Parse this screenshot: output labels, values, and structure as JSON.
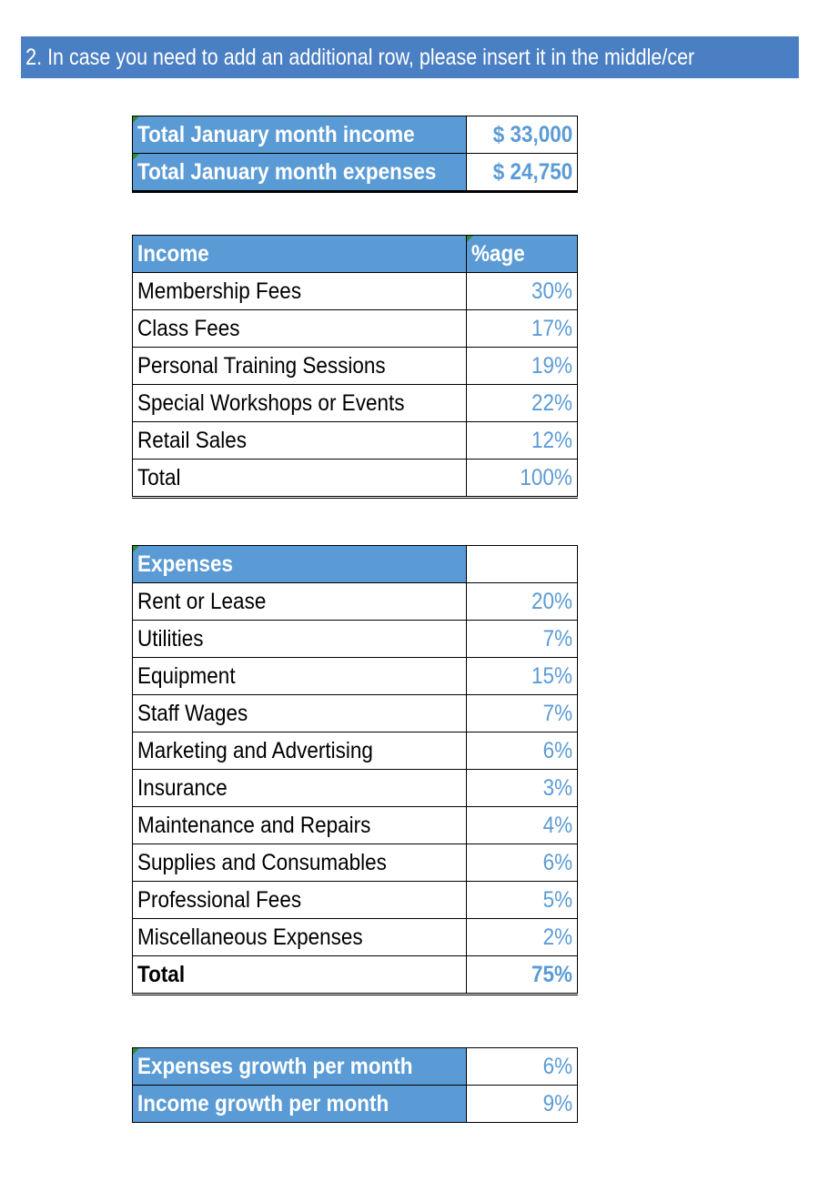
{
  "banner": {
    "text": "2. In case you need to add an additional row, please insert it in the middle/cer"
  },
  "summary": {
    "rows": [
      {
        "label": "Total January month income",
        "value": "$ 33,000"
      },
      {
        "label": "Total January month expenses",
        "value": "$ 24,750"
      }
    ]
  },
  "income": {
    "header_label": "Income",
    "header_value": "%age",
    "rows": [
      {
        "label": "Membership Fees",
        "value": "30%"
      },
      {
        "label": "Class Fees",
        "value": "17%"
      },
      {
        "label": "Personal Training Sessions",
        "value": "19%"
      },
      {
        "label": "Special Workshops or Events",
        "value": "22%"
      },
      {
        "label": "Retail Sales",
        "value": "12%"
      }
    ],
    "total_label": "Total",
    "total_value": "100%"
  },
  "expenses": {
    "header_label": "Expenses",
    "header_value": "",
    "rows": [
      {
        "label": "Rent or Lease",
        "value": "20%"
      },
      {
        "label": "Utilities",
        "value": "7%"
      },
      {
        "label": "Equipment",
        "value": "15%"
      },
      {
        "label": "Staff Wages",
        "value": "7%"
      },
      {
        "label": "Marketing and Advertising",
        "value": "6%"
      },
      {
        "label": "Insurance",
        "value": "3%"
      },
      {
        "label": "Maintenance and Repairs",
        "value": "4%"
      },
      {
        "label": "Supplies and Consumables",
        "value": "6%"
      },
      {
        "label": "Professional Fees",
        "value": "5%"
      },
      {
        "label": "Miscellaneous Expenses",
        "value": "2%"
      }
    ],
    "total_label": "Total",
    "total_value": "75%"
  },
  "growth": {
    "rows": [
      {
        "label": "Expenses growth per month",
        "value": "6%"
      },
      {
        "label": "Income growth per month",
        "value": "9%"
      }
    ]
  },
  "colors": {
    "banner_bg": "#4a7fc3",
    "header_bg": "#5b9bd5",
    "value_text": "#5b9bd5",
    "cell_marker": "#2e8b3a"
  }
}
